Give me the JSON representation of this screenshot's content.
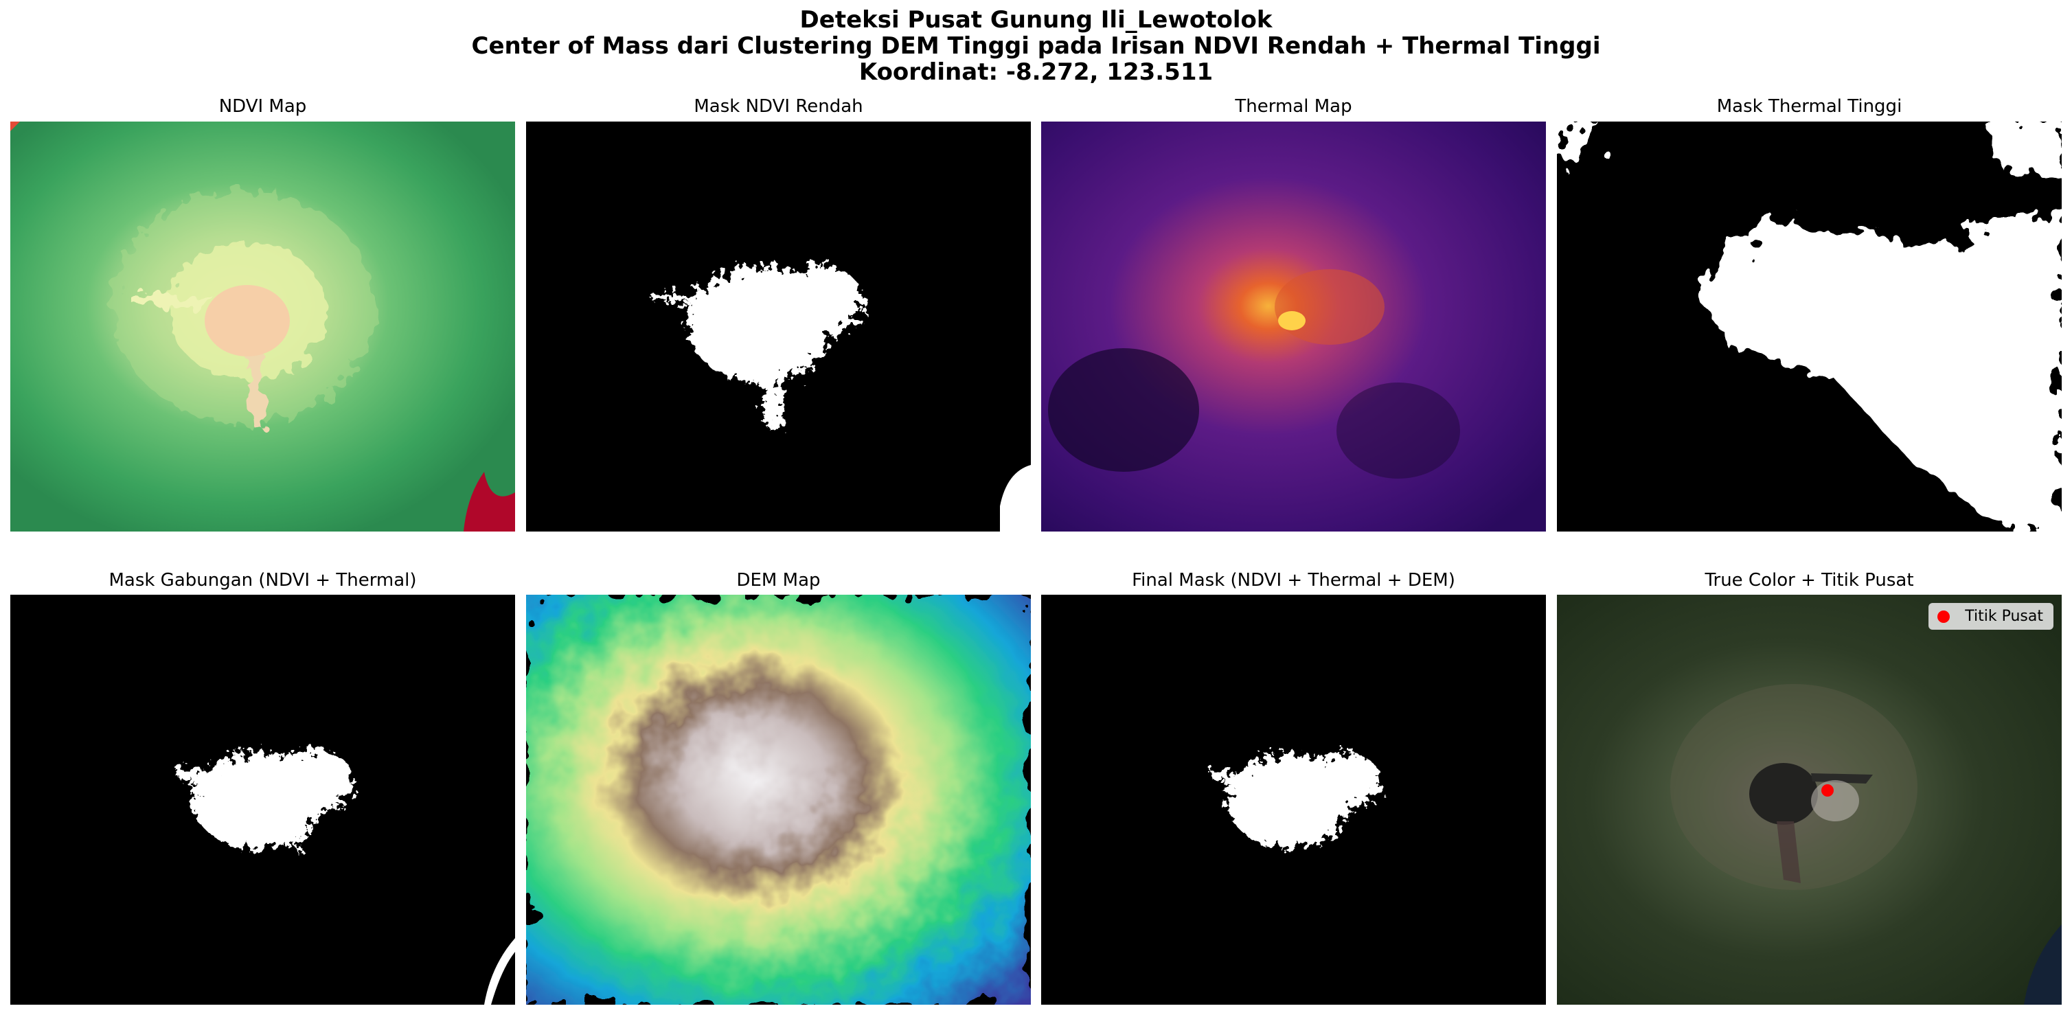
{
  "figure": {
    "title_line1": "Deteksi Pusat Gunung Ili_Lewotolok",
    "title_line2": "Center of Mass dari Clustering DEM Tinggi pada Irisan NDVI Rendah + Thermal Tinggi",
    "title_line3": "Koordinat: -8.272, 123.511"
  },
  "panels": {
    "ndvi_map": "NDVI Map",
    "mask_ndvi_rendah": "Mask NDVI Rendah",
    "thermal_map": "Thermal Map",
    "mask_thermal_tinggi": "Mask Thermal Tinggi",
    "mask_gabungan": "Mask Gabungan (NDVI + Thermal)",
    "dem_map": "DEM Map",
    "final_mask": "Final Mask (NDVI + Thermal + DEM)",
    "true_color": "True Color + Titik Pusat"
  },
  "legend": {
    "label": "Titik Pusat",
    "marker_color": "#ff0000"
  },
  "center_point": {
    "lat": -8.272,
    "lon": 123.511
  }
}
